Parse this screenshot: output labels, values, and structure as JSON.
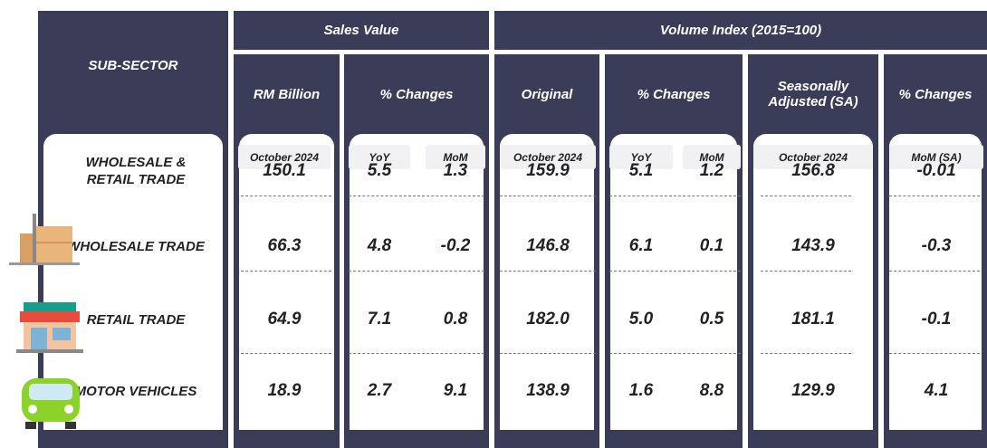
{
  "header": {
    "sub_sector": "SUB-SECTOR",
    "sales_value": "Sales Value",
    "volume_index": "Volume Index (2015=100)"
  },
  "columns": [
    "RM Billion",
    "% Changes",
    "Original",
    "% Changes",
    "Seasonally Adjusted (SA)",
    "% Changes"
  ],
  "subcolumns": [
    "October 2024",
    "YoY",
    "MoM",
    "October 2024",
    "YoY",
    "MoM",
    "October 2024",
    "MoM (SA)"
  ],
  "rows": [
    {
      "label": "WHOLESALE & RETAIL TRADE",
      "values": [
        "150.1",
        "5.5",
        "1.3",
        "159.9",
        "5.1",
        "1.2",
        "156.8",
        "-0.01"
      ]
    },
    {
      "label": "WHOLESALE TRADE",
      "values": [
        "66.3",
        "4.8",
        "-0.2",
        "146.8",
        "6.1",
        "0.1",
        "143.9",
        "-0.3"
      ]
    },
    {
      "label": "RETAIL TRADE",
      "values": [
        "64.9",
        "7.1",
        "0.8",
        "182.0",
        "5.0",
        "0.5",
        "181.1",
        "-0.1"
      ]
    },
    {
      "label": "MOTOR VEHICLES",
      "values": [
        "18.9",
        "2.7",
        "9.1",
        "138.9",
        "1.6",
        "8.8",
        "129.9",
        "4.1"
      ]
    }
  ]
}
